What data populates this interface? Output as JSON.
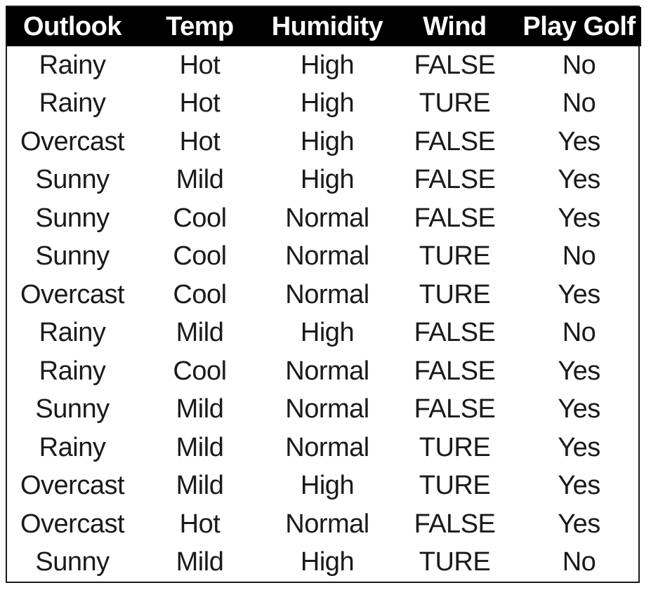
{
  "table": {
    "headers": [
      "Outlook",
      "Temp",
      "Humidity",
      "Wind",
      "Play Golf"
    ],
    "rows": [
      [
        "Rainy",
        "Hot",
        "High",
        "FALSE",
        "No"
      ],
      [
        "Rainy",
        "Hot",
        "High",
        "TURE",
        "No"
      ],
      [
        "Overcast",
        "Hot",
        "High",
        "FALSE",
        "Yes"
      ],
      [
        "Sunny",
        "Mild",
        "High",
        "FALSE",
        "Yes"
      ],
      [
        "Sunny",
        "Cool",
        "Normal",
        "FALSE",
        "Yes"
      ],
      [
        "Sunny",
        "Cool",
        "Normal",
        "TURE",
        "No"
      ],
      [
        "Overcast",
        "Cool",
        "Normal",
        "TURE",
        "Yes"
      ],
      [
        "Rainy",
        "Mild",
        "High",
        "FALSE",
        "No"
      ],
      [
        "Rainy",
        "Cool",
        "Normal",
        "FALSE",
        "Yes"
      ],
      [
        "Sunny",
        "Mild",
        "Normal",
        "FALSE",
        "Yes"
      ],
      [
        "Rainy",
        "Mild",
        "Normal",
        "TURE",
        "Yes"
      ],
      [
        "Overcast",
        "Mild",
        "High",
        "TURE",
        "Yes"
      ],
      [
        "Overcast",
        "Hot",
        "Normal",
        "FALSE",
        "Yes"
      ],
      [
        "Sunny",
        "Mild",
        "High",
        "TURE",
        "No"
      ]
    ]
  },
  "colors": {
    "header_background": "#000000",
    "header_text": "#ffffff",
    "body_text": "#1a1a1a",
    "background": "#ffffff"
  }
}
